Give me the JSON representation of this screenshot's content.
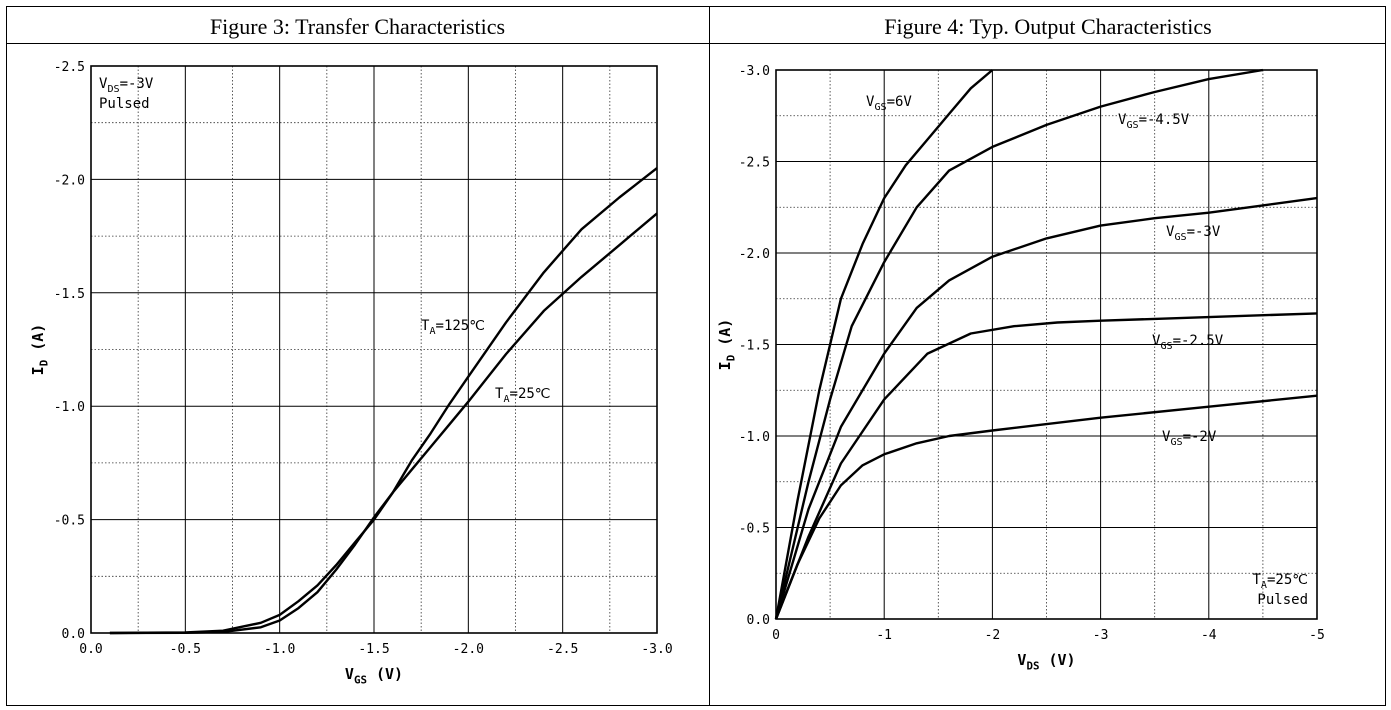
{
  "charts": [
    {
      "title": "Figure 3: Transfer Characteristics",
      "chart_data": {
        "type": "line",
        "xlabel": "V",
        "xlabel_sub": "GS",
        "xlabel_unit": "(V)",
        "ylabel": "I",
        "ylabel_sub": "D",
        "ylabel_unit": "(A)",
        "xlim": [
          0,
          -3.0
        ],
        "ylim": [
          0,
          -2.5
        ],
        "x_ticks": [
          "0.0",
          "-0.5",
          "-1.0",
          "-1.5",
          "-2.0",
          "-2.5",
          "-3.0"
        ],
        "y_ticks": [
          "0.0",
          "-0.5",
          "-1.0",
          "-1.5",
          "-2.0",
          "-2.5"
        ],
        "grid": true,
        "annotation": {
          "line1_main": "V",
          "line1_sub": "DS",
          "line1_rest": "=-3V",
          "line2": "Pulsed"
        },
        "series": [
          {
            "label_main": "T",
            "label_sub": "A",
            "label_rest": "=125℃",
            "points": [
              [
                -0.1,
                0
              ],
              [
                -0.5,
                -0.002
              ],
              [
                -0.7,
                -0.01
              ],
              [
                -0.9,
                -0.045
              ],
              [
                -1.0,
                -0.08
              ],
              [
                -1.1,
                -0.14
              ],
              [
                -1.2,
                -0.21
              ],
              [
                -1.3,
                -0.3
              ],
              [
                -1.4,
                -0.4
              ],
              [
                -1.5,
                -0.5
              ],
              [
                -1.6,
                -0.62
              ],
              [
                -1.7,
                -0.76
              ],
              [
                -1.8,
                -0.88
              ],
              [
                -1.9,
                -1.01
              ],
              [
                -2.0,
                -1.13
              ],
              [
                -2.2,
                -1.37
              ],
              [
                -2.4,
                -1.59
              ],
              [
                -2.6,
                -1.78
              ],
              [
                -2.8,
                -1.92
              ],
              [
                -3.0,
                -2.05
              ]
            ]
          },
          {
            "label_main": "T",
            "label_sub": "A",
            "label_rest": "=25℃",
            "points": [
              [
                -0.1,
                0
              ],
              [
                -0.5,
                -0.001
              ],
              [
                -0.7,
                -0.005
              ],
              [
                -0.9,
                -0.025
              ],
              [
                -1.0,
                -0.055
              ],
              [
                -1.1,
                -0.11
              ],
              [
                -1.2,
                -0.18
              ],
              [
                -1.3,
                -0.28
              ],
              [
                -1.4,
                -0.39
              ],
              [
                -1.5,
                -0.51
              ],
              [
                -1.6,
                -0.62
              ],
              [
                -1.7,
                -0.72
              ],
              [
                -1.8,
                -0.82
              ],
              [
                -1.9,
                -0.92
              ],
              [
                -2.0,
                -1.02
              ],
              [
                -2.2,
                -1.23
              ],
              [
                -2.4,
                -1.42
              ],
              [
                -2.6,
                -1.57
              ],
              [
                -2.8,
                -1.71
              ],
              [
                -3.0,
                -1.85
              ]
            ]
          }
        ]
      }
    },
    {
      "title": "Figure 4: Typ. Output Characteristics",
      "chart_data": {
        "type": "line",
        "xlabel": "V",
        "xlabel_sub": "DS",
        "xlabel_unit": "(V)",
        "ylabel": "I",
        "ylabel_sub": "D",
        "ylabel_unit": "(A)",
        "xlim": [
          0,
          -5
        ],
        "ylim": [
          0,
          -3.0
        ],
        "x_ticks": [
          "0",
          "-1",
          "-2",
          "-3",
          "-4",
          "-5"
        ],
        "y_ticks": [
          "0.0",
          "-0.5",
          "-1.0",
          "-1.5",
          "-2.0",
          "-2.5",
          "-3.0"
        ],
        "grid": true,
        "annotation": {
          "line1_main": "T",
          "line1_sub": "A",
          "line1_rest": "=25℃",
          "line2": "Pulsed"
        },
        "series": [
          {
            "label_main": "V",
            "label_sub": "GS",
            "label_rest": "=6V",
            "points": [
              [
                0,
                0
              ],
              [
                -0.2,
                -0.65
              ],
              [
                -0.4,
                -1.25
              ],
              [
                -0.6,
                -1.75
              ],
              [
                -0.8,
                -2.05
              ],
              [
                -1.0,
                -2.3
              ],
              [
                -1.2,
                -2.48
              ],
              [
                -1.4,
                -2.62
              ],
              [
                -1.6,
                -2.76
              ],
              [
                -1.8,
                -2.9
              ],
              [
                -2.0,
                -3.0
              ]
            ]
          },
          {
            "label_main": "V",
            "label_sub": "GS",
            "label_rest": "=-4.5V",
            "points": [
              [
                0,
                0
              ],
              [
                -0.3,
                -0.75
              ],
              [
                -0.5,
                -1.2
              ],
              [
                -0.7,
                -1.6
              ],
              [
                -1.0,
                -1.95
              ],
              [
                -1.3,
                -2.25
              ],
              [
                -1.6,
                -2.45
              ],
              [
                -2.0,
                -2.58
              ],
              [
                -2.5,
                -2.7
              ],
              [
                -3.0,
                -2.8
              ],
              [
                -3.5,
                -2.88
              ],
              [
                -4.0,
                -2.95
              ],
              [
                -4.5,
                -3.0
              ]
            ]
          },
          {
            "label_main": "V",
            "label_sub": "GS",
            "label_rest": "=-3V",
            "points": [
              [
                0,
                0
              ],
              [
                -0.3,
                -0.6
              ],
              [
                -0.6,
                -1.05
              ],
              [
                -1.0,
                -1.45
              ],
              [
                -1.3,
                -1.7
              ],
              [
                -1.6,
                -1.85
              ],
              [
                -2.0,
                -1.98
              ],
              [
                -2.5,
                -2.08
              ],
              [
                -3.0,
                -2.15
              ],
              [
                -3.5,
                -2.19
              ],
              [
                -4.0,
                -2.22
              ],
              [
                -4.5,
                -2.26
              ],
              [
                -5.0,
                -2.3
              ]
            ]
          },
          {
            "label_main": "V",
            "label_sub": "GS",
            "label_rest": "=-2.5V",
            "points": [
              [
                0,
                0
              ],
              [
                -0.3,
                -0.45
              ],
              [
                -0.6,
                -0.85
              ],
              [
                -1.0,
                -1.2
              ],
              [
                -1.4,
                -1.45
              ],
              [
                -1.8,
                -1.56
              ],
              [
                -2.2,
                -1.6
              ],
              [
                -2.6,
                -1.62
              ],
              [
                -3.0,
                -1.63
              ],
              [
                -3.5,
                -1.64
              ],
              [
                -4.0,
                -1.65
              ],
              [
                -5.0,
                -1.67
              ]
            ]
          },
          {
            "label_main": "V",
            "label_sub": "GS",
            "label_rest": "=-2V",
            "points": [
              [
                0,
                0
              ],
              [
                -0.2,
                -0.3
              ],
              [
                -0.4,
                -0.55
              ],
              [
                -0.6,
                -0.73
              ],
              [
                -0.8,
                -0.84
              ],
              [
                -1.0,
                -0.9
              ],
              [
                -1.3,
                -0.96
              ],
              [
                -1.6,
                -1.0
              ],
              [
                -2.0,
                -1.03
              ],
              [
                -3.0,
                -1.1
              ],
              [
                -4.0,
                -1.16
              ],
              [
                -5.0,
                -1.22
              ]
            ]
          }
        ]
      }
    }
  ]
}
